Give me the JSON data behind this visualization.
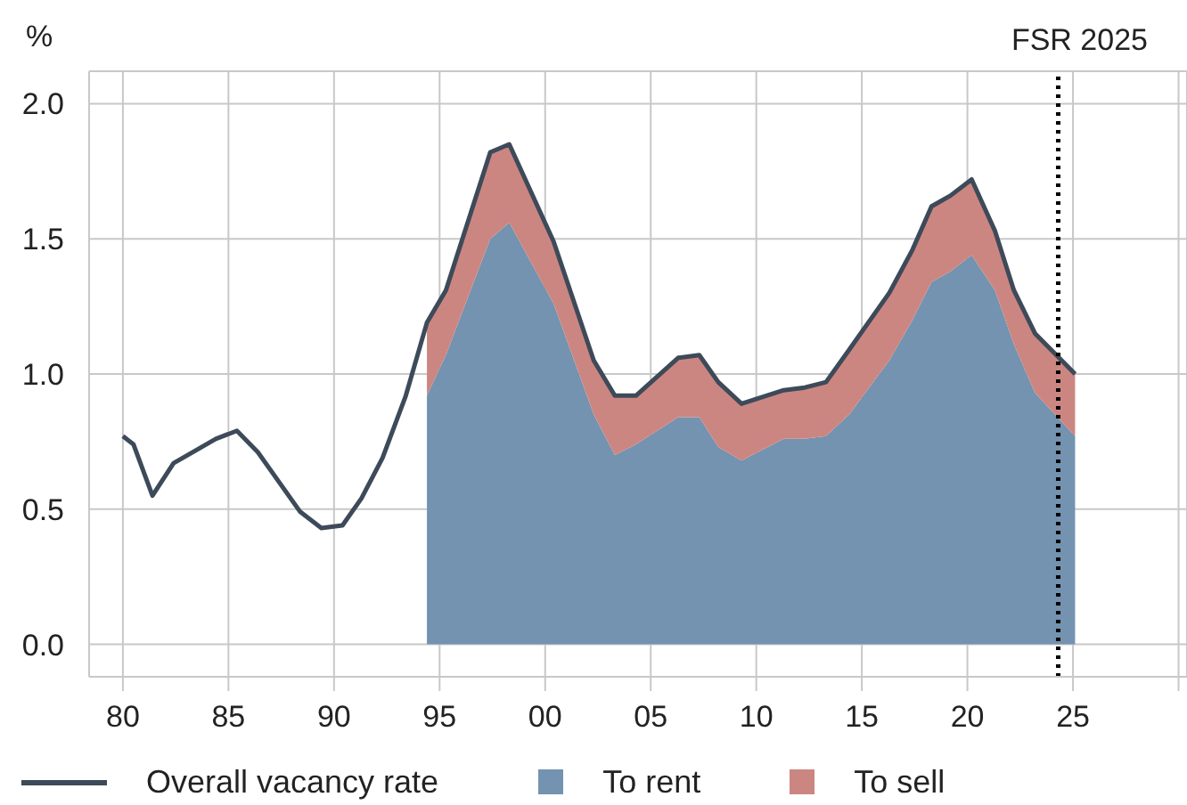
{
  "chart_data": {
    "type": "line",
    "ylabel": "%",
    "x": [
      1980.0,
      1980.5,
      1981.4,
      1982.4,
      1984.4,
      1985.4,
      1986.4,
      1988.4,
      1989.4,
      1990.4,
      1991.3,
      1992.3,
      1993.4,
      1994.4,
      1995.3,
      1997.4,
      1998.3,
      2000.4,
      2002.3,
      2003.3,
      2004.3,
      2006.3,
      2007.3,
      2008.2,
      2009.3,
      2011.3,
      2012.3,
      2013.3,
      2014.4,
      2016.3,
      2017.4,
      2018.3,
      2019.2,
      2020.2,
      2021.3,
      2022.2,
      2023.2,
      2025.1
    ],
    "series": [
      {
        "name": "To rent",
        "type": "area",
        "color": "#7393b0",
        "values": [
          null,
          null,
          null,
          null,
          null,
          null,
          null,
          null,
          null,
          null,
          null,
          null,
          null,
          0.92,
          1.07,
          1.5,
          1.56,
          1.26,
          0.85,
          0.7,
          0.74,
          0.84,
          0.84,
          0.73,
          0.68,
          0.76,
          0.76,
          0.77,
          0.85,
          1.05,
          1.2,
          1.34,
          1.38,
          1.44,
          1.31,
          1.11,
          0.93,
          0.77
        ]
      },
      {
        "name": "To sell",
        "type": "area",
        "color": "#cc8681",
        "values": [
          null,
          null,
          null,
          null,
          null,
          null,
          null,
          null,
          null,
          null,
          null,
          null,
          null,
          0.27,
          0.24,
          0.32,
          0.29,
          0.23,
          0.2,
          0.22,
          0.18,
          0.22,
          0.23,
          0.24,
          0.21,
          0.18,
          0.19,
          0.2,
          0.24,
          0.25,
          0.26,
          0.28,
          0.28,
          0.28,
          0.22,
          0.2,
          0.22,
          0.23
        ]
      },
      {
        "name": "Overall vacancy rate",
        "color": "#3d4a59",
        "values": [
          0.77,
          0.74,
          0.55,
          0.67,
          0.76,
          0.79,
          0.71,
          0.49,
          0.43,
          0.44,
          0.54,
          0.69,
          0.92,
          1.19,
          1.31,
          1.82,
          1.85,
          1.49,
          1.05,
          0.92,
          0.92,
          1.06,
          1.07,
          0.97,
          0.89,
          0.94,
          0.95,
          0.97,
          1.09,
          1.3,
          1.46,
          1.62,
          1.66,
          1.72,
          1.53,
          1.31,
          1.15,
          1.0
        ]
      }
    ],
    "stacked": true,
    "xlim": [
      1978.4,
      2030.4
    ],
    "xticks": [
      {
        "value": 1980,
        "label": "80"
      },
      {
        "value": 1985,
        "label": "85"
      },
      {
        "value": 1990,
        "label": "90"
      },
      {
        "value": 1995,
        "label": "95"
      },
      {
        "value": 2000,
        "label": "00"
      },
      {
        "value": 2005,
        "label": "05"
      },
      {
        "value": 2010,
        "label": "10"
      },
      {
        "value": 2015,
        "label": "15"
      },
      {
        "value": 2020,
        "label": "20"
      },
      {
        "value": 2025,
        "label": "25"
      },
      {
        "value": 2030,
        "label": null
      }
    ],
    "ylim": [
      -0.12,
      2.12
    ],
    "yticks": [
      {
        "value": 0,
        "label": "0.0"
      },
      {
        "value": 0.5,
        "label": "0.5"
      },
      {
        "value": 1,
        "label": "1.0"
      },
      {
        "value": 1.5,
        "label": "1.5"
      },
      {
        "value": 2,
        "label": "2.0"
      }
    ],
    "ref_lines": [
      {
        "axis": "x",
        "value": 2024.3,
        "label": "FSR 2025",
        "color": "#000000",
        "line_style": "dotted"
      }
    ],
    "grid": true,
    "legend": "bottom",
    "line_style": "solid",
    "marker": "none"
  }
}
